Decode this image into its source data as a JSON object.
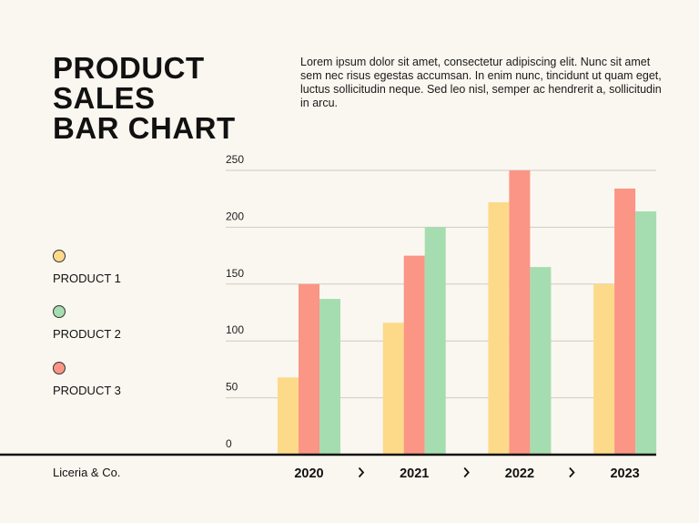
{
  "title_lines": [
    "PRODUCT",
    "SALES",
    "BAR CHART"
  ],
  "description": "Lorem ipsum dolor sit amet, consectetur adipiscing elit. Nunc sit amet sem nec risus egestas accumsan. In enim nunc, tincidunt ut quam eget, luctus sollicitudin neque. Sed leo nisl, semper ac hendrerit a, sollicitudin in arcu.",
  "company": "Liceria & Co.",
  "legend": [
    {
      "label": "PRODUCT 1",
      "color": "#fdda8a"
    },
    {
      "label": "PRODUCT 2",
      "color": "#a6ddb0"
    },
    {
      "label": "PRODUCT 3",
      "color": "#fb9585"
    }
  ],
  "chart_data": {
    "type": "bar",
    "categories": [
      "2020",
      "2021",
      "2022",
      "2023"
    ],
    "series": [
      {
        "name": "PRODUCT 1",
        "color": "#fdda8a",
        "values": [
          68,
          116,
          222,
          150
        ]
      },
      {
        "name": "PRODUCT 3",
        "color": "#fb9585",
        "values": [
          150,
          175,
          250,
          234
        ]
      },
      {
        "name": "PRODUCT 2",
        "color": "#a6ddb0",
        "values": [
          137,
          200,
          165,
          214
        ]
      }
    ],
    "yticks": [
      "0",
      "50",
      "100",
      "150",
      "200",
      "250"
    ],
    "ylim": [
      0,
      250
    ],
    "grid": true,
    "legend_position": "left",
    "category_separator_icon": "chevron-right-icon"
  }
}
